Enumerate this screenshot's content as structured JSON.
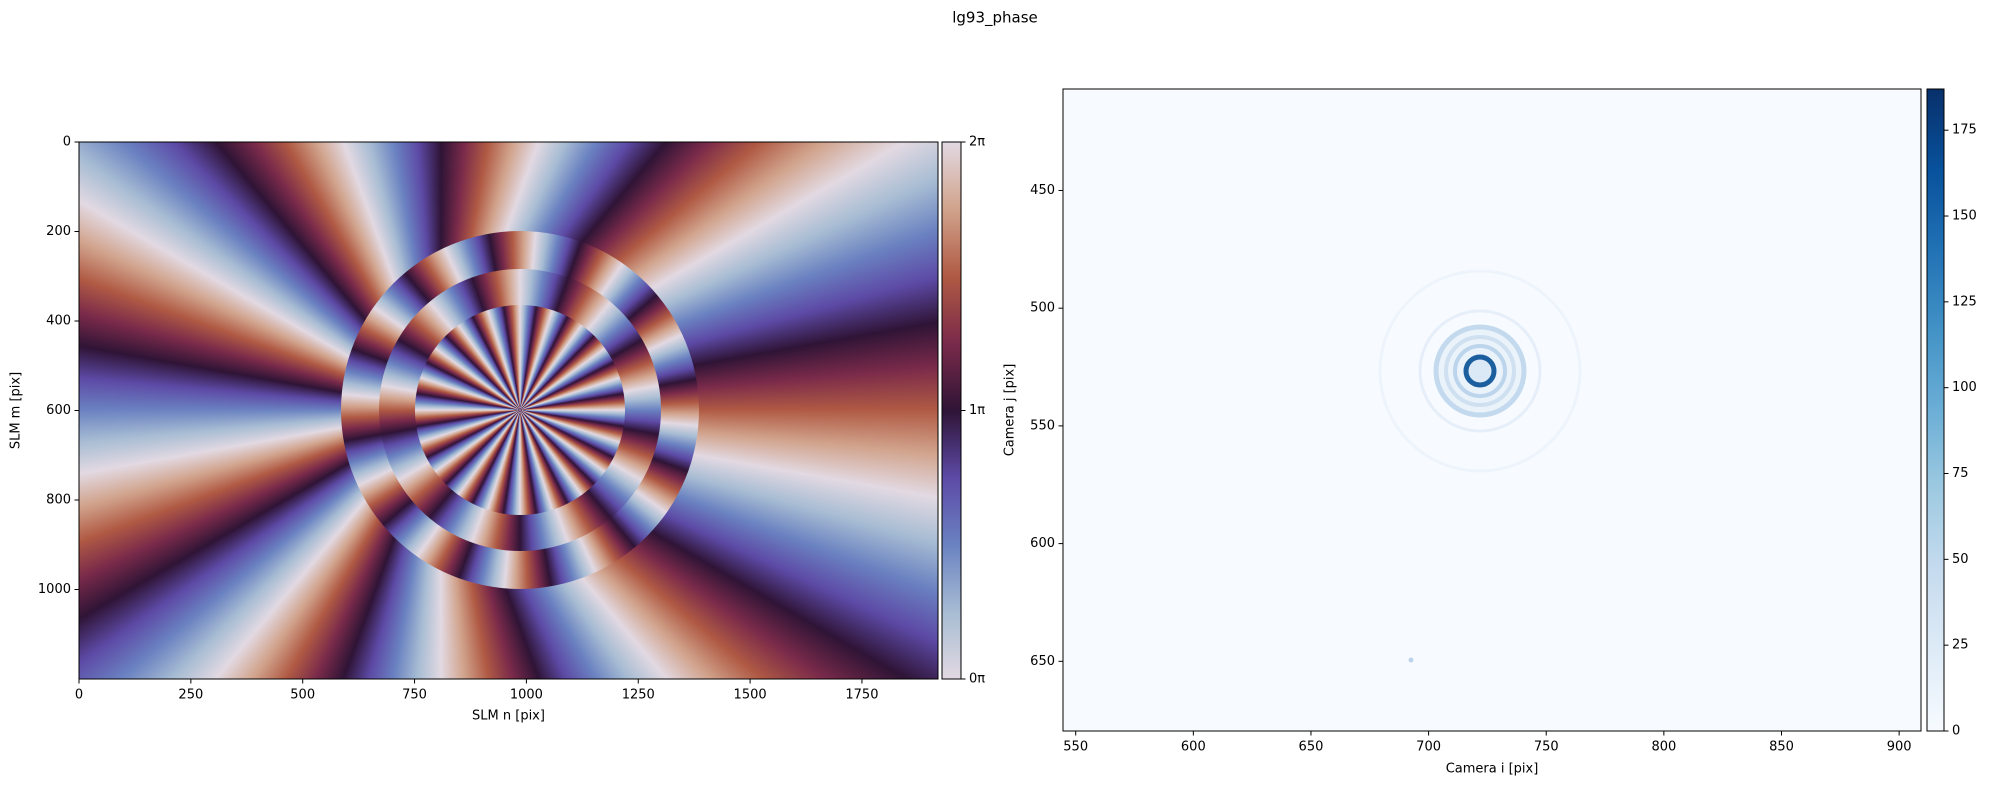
{
  "title": "lg93_phase",
  "chart_data": [
    {
      "type": "image",
      "cmap": "twilight",
      "xlabel": "SLM n [pix]",
      "ylabel": "SLM m [pix]",
      "xlim": [
        0,
        1920
      ],
      "ylim": [
        1200,
        0
      ],
      "xticks": [
        0,
        250,
        500,
        750,
        1000,
        1250,
        1500,
        1750
      ],
      "yticks": [
        0,
        200,
        400,
        600,
        800,
        1000
      ],
      "colorbar": {
        "lim": [
          0,
          6.28319
        ],
        "ticks": [
          {
            "value": 0,
            "label": "0π"
          },
          {
            "value": 3.14159,
            "label": "1π"
          },
          {
            "value": 6.28319,
            "label": "2π"
          }
        ]
      }
    },
    {
      "type": "image",
      "cmap": "Blues",
      "xlabel": "Camera i [pix]",
      "ylabel": "Camera j [pix]",
      "xlim": [
        544.6,
        909.3
      ],
      "ylim": [
        679.6,
        406.9
      ],
      "xticks": [
        550,
        600,
        650,
        700,
        750,
        800,
        850,
        900
      ],
      "yticks": [
        450,
        500,
        550,
        600,
        650
      ],
      "colorbar": {
        "lim": [
          0,
          187
        ],
        "ticks": [
          0,
          25,
          50,
          75,
          100,
          125,
          150,
          175
        ]
      }
    }
  ]
}
